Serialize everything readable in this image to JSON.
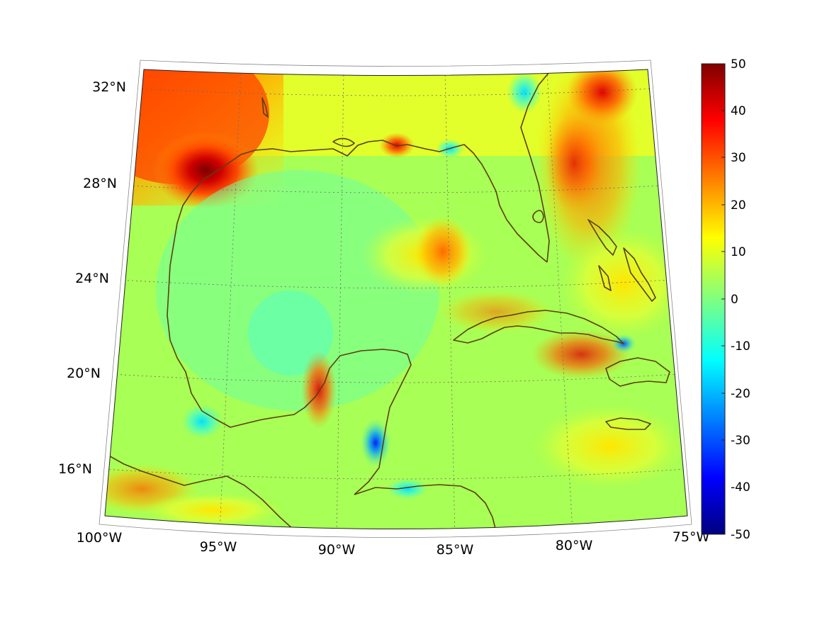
{
  "map": {
    "projection": "conic",
    "region": "Gulf of Mexico and Caribbean",
    "lon_range": [
      -100,
      -75
    ],
    "lat_range": [
      14,
      33
    ],
    "grid": true,
    "coastline_color": "#5a3f10"
  },
  "axes": {
    "lat_labels": [
      "32°N",
      "28°N",
      "24°N",
      "20°N",
      "16°N"
    ],
    "lon_labels": [
      "100°W",
      "95°W",
      "90°W",
      "85°W",
      "80°W",
      "75°W"
    ]
  },
  "colorbar": {
    "colormap": "jet",
    "min": -50,
    "max": 50,
    "ticks": [
      "50",
      "40",
      "30",
      "20",
      "10",
      "0",
      "-10",
      "-20",
      "-30",
      "-40",
      "-50"
    ]
  }
}
